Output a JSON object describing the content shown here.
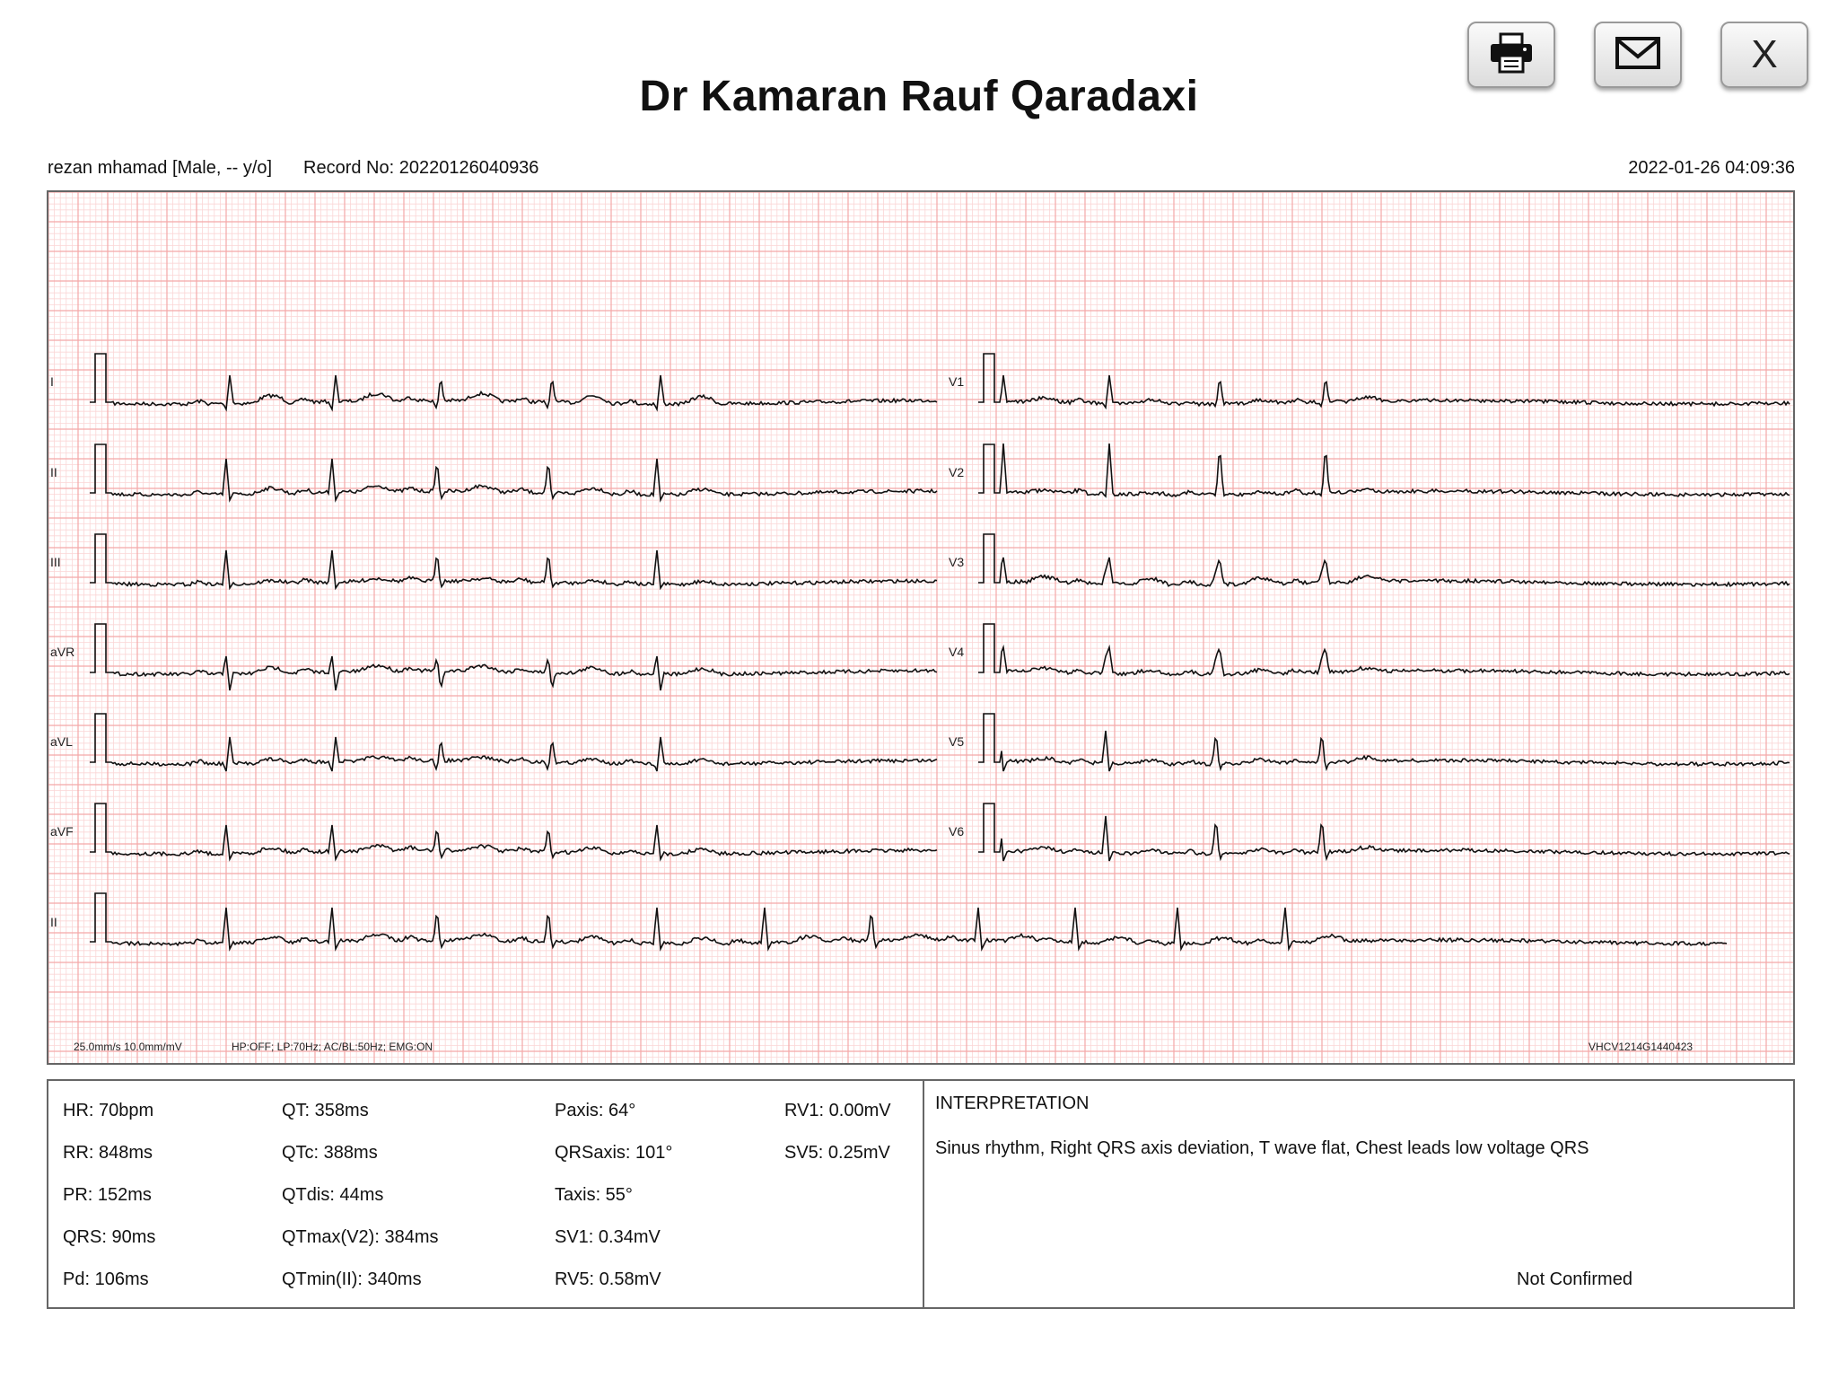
{
  "toolbar": {
    "print_icon": "printer-icon",
    "email_icon": "envelope-icon",
    "close_label": "X"
  },
  "report": {
    "title": "Dr Kamaran Rauf Qaradaxi",
    "patient": "rezan mhamad [Male, -- y/o]",
    "record_no": "Record No: 20220126040936",
    "datetime": "2022-01-26 04:09:36"
  },
  "ecg": {
    "grid_color": "#f4a8a8",
    "minor_grid_color": "#fbd6d6",
    "trace_color": "#111111",
    "leads_left": [
      "I",
      "II",
      "III",
      "aVR",
      "aVL",
      "aVF"
    ],
    "leads_right": [
      "V1",
      "V2",
      "V3",
      "V4",
      "V5",
      "V6"
    ],
    "rhythm_lead": "II",
    "speed_gain": "25.0mm/s  10.0mm/mV",
    "filters": "HP:OFF; LP:70Hz; AC/BL:50Hz; EMG:ON",
    "device_id": "VHCV1214G1440423"
  },
  "measurements": {
    "col1": [
      "HR: 70bpm",
      "RR: 848ms",
      "PR: 152ms",
      "QRS: 90ms",
      "Pd: 106ms"
    ],
    "col2": [
      "QT: 358ms",
      "QTc: 388ms",
      "QTdis: 44ms",
      "QTmax(V2): 384ms",
      "QTmin(II): 340ms"
    ],
    "col3": [
      "Paxis: 64°",
      "QRSaxis: 101°",
      "Taxis: 55°",
      "SV1: 0.34mV",
      "RV5: 0.58mV"
    ],
    "col4": [
      "RV1: 0.00mV",
      "SV5: 0.25mV"
    ]
  },
  "interpretation": {
    "title": "INTERPRETATION",
    "text": "Sinus rhythm, Right QRS axis deviation, T wave flat, Chest leads low voltage QRS",
    "status": "Not Confirmed"
  }
}
